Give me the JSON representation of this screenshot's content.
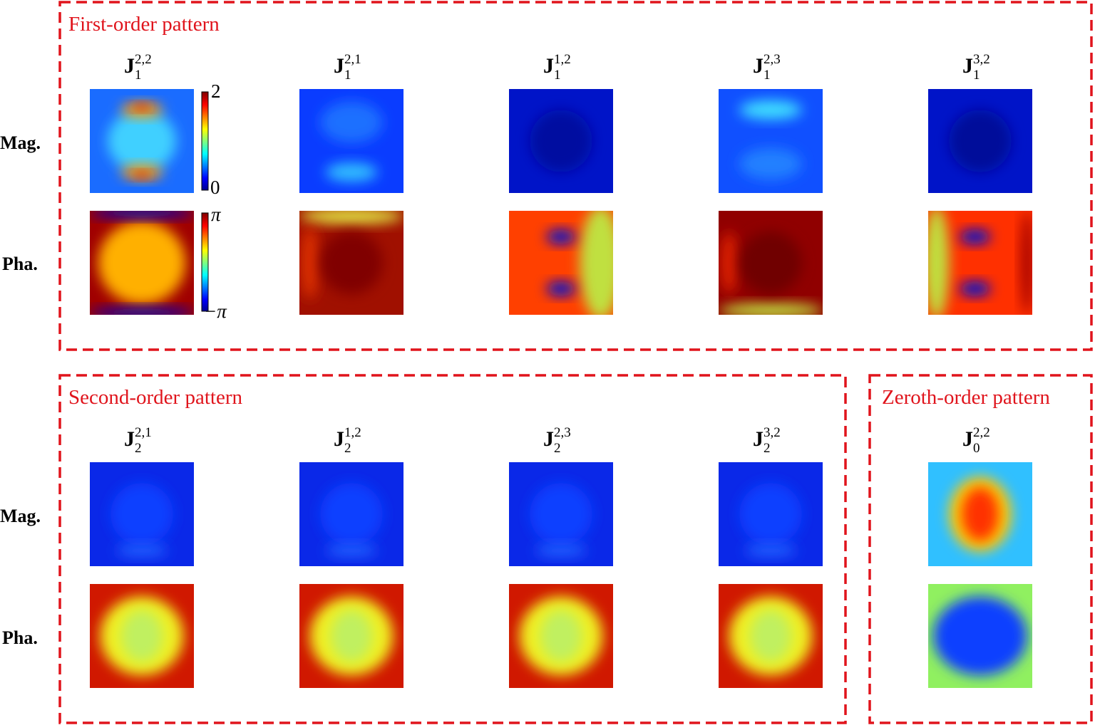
{
  "sections": [
    {
      "title": "First-order pattern",
      "row_labels": [
        "Mag.",
        "Pha."
      ],
      "panels": [
        {
          "symbol": "J",
          "subscript": "1",
          "superscript": "2,2"
        },
        {
          "symbol": "J",
          "subscript": "1",
          "superscript": "2,1"
        },
        {
          "symbol": "J",
          "subscript": "1",
          "superscript": "1,2"
        },
        {
          "symbol": "J",
          "subscript": "1",
          "superscript": "2,3"
        },
        {
          "symbol": "J",
          "subscript": "1",
          "superscript": "3,2"
        }
      ]
    },
    {
      "title": "Second-order pattern",
      "row_labels": [
        "Mag.",
        "Pha."
      ],
      "panels": [
        {
          "symbol": "J",
          "subscript": "2",
          "superscript": "2,1"
        },
        {
          "symbol": "J",
          "subscript": "2",
          "superscript": "1,2"
        },
        {
          "symbol": "J",
          "subscript": "2",
          "superscript": "2,3"
        },
        {
          "symbol": "J",
          "subscript": "2",
          "superscript": "3,2"
        }
      ]
    },
    {
      "title": "Zeroth-order pattern",
      "panels": [
        {
          "symbol": "J",
          "subscript": "0",
          "superscript": "2,2"
        }
      ]
    }
  ],
  "colorbars": {
    "magnitude": {
      "max": "2",
      "min": "0"
    },
    "phase": {
      "max": "π",
      "min": "−π"
    }
  }
}
